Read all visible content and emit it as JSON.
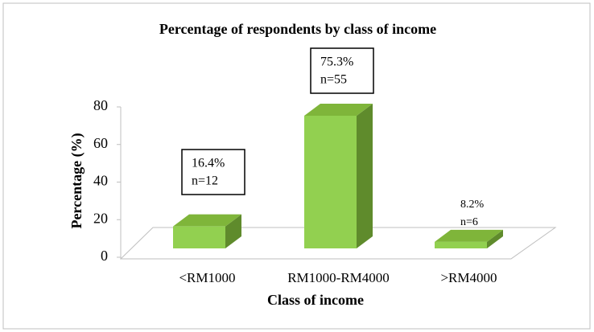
{
  "chart_data": {
    "type": "bar3d",
    "title": "Percentage of respondents by class of income",
    "xlabel": "Class of income",
    "ylabel": "Percentage (%)",
    "categories": [
      "<RM1000",
      "RM1000-RM4000",
      ">RM4000"
    ],
    "values": [
      16.4,
      75.3,
      8.2
    ],
    "value_labels": [
      "16.4%",
      "75.3%",
      "8.2%"
    ],
    "count_labels": [
      "n=12",
      "n=55",
      "n=6"
    ],
    "color": "#92d050",
    "ylim": [
      0,
      80
    ],
    "yticks": [
      0,
      20,
      40,
      60,
      80
    ]
  }
}
